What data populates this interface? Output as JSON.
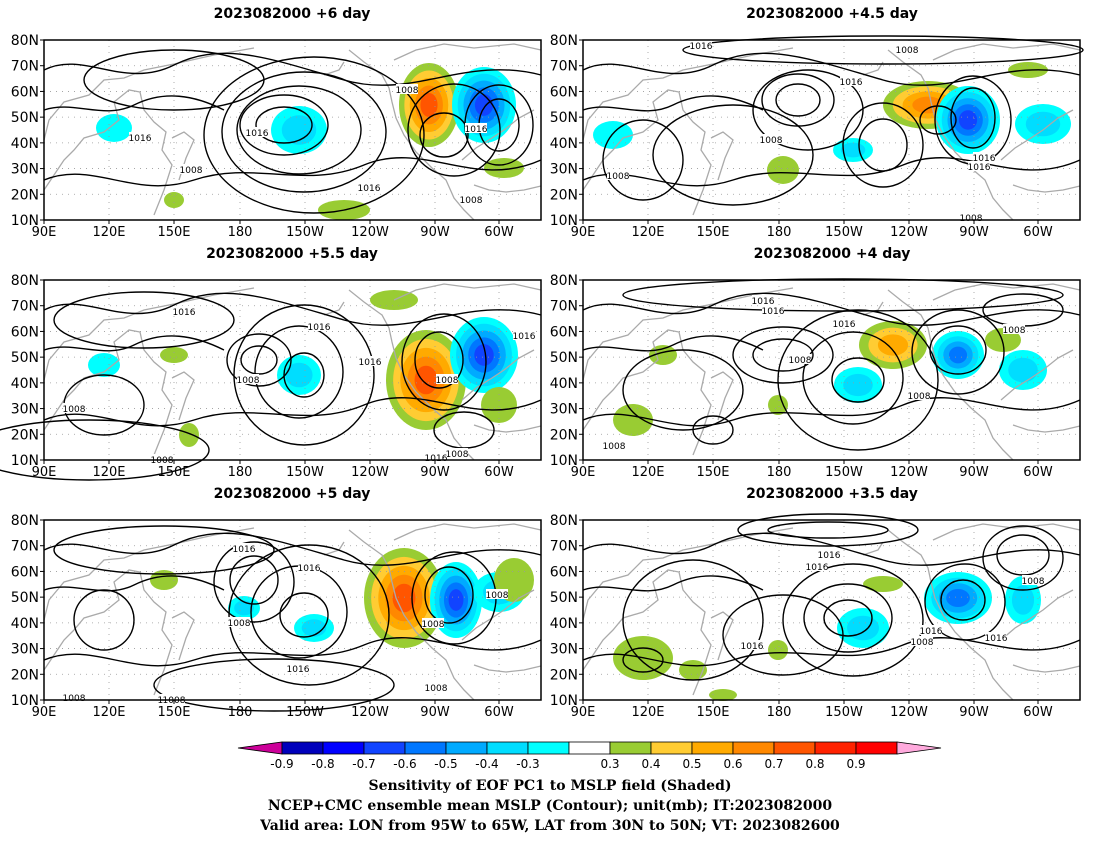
{
  "panels": [
    {
      "title": "2023082000  +6  day",
      "contour_labels": [
        "1016",
        "1008",
        "1016",
        "1008",
        "1016",
        "1008",
        "1016"
      ]
    },
    {
      "title": "2023082000  +4.5  day",
      "contour_labels": [
        "1016",
        "1008",
        "1016",
        "1008",
        "1008",
        "1016",
        "1016",
        "1008"
      ]
    },
    {
      "title": "2023082000  +5.5  day",
      "contour_labels": [
        "1016",
        "1016",
        "1008",
        "1016",
        "1008",
        "1008",
        "1016",
        "1008",
        "1008",
        "1016"
      ]
    },
    {
      "title": "2023082000  +4  day",
      "contour_labels": [
        "1016",
        "1016",
        "1016",
        "1008",
        "1008",
        "1008",
        "1008"
      ]
    },
    {
      "title": "2023082000  +5  day",
      "contour_labels": [
        "1016",
        "1016",
        "1008",
        "1008",
        "1016",
        "1008",
        "1008",
        "1016",
        "1008",
        "1008"
      ]
    },
    {
      "title": "2023082000  +3.5  day",
      "contour_labels": [
        "1016",
        "1016",
        "1008",
        "1016",
        "1008",
        "1016",
        "1016"
      ]
    }
  ],
  "map_axes": {
    "lat_labels": [
      "80N",
      "70N",
      "60N",
      "50N",
      "40N",
      "30N",
      "20N",
      "10N"
    ],
    "lon_labels": [
      "90E",
      "120E",
      "150E",
      "180",
      "150W",
      "120W",
      "90W",
      "60W"
    ]
  },
  "colorbar": {
    "ticks": [
      "-0.9",
      "-0.8",
      "-0.7",
      "-0.6",
      "-0.5",
      "-0.4",
      "-0.3",
      "0.3",
      "0.4",
      "0.5",
      "0.6",
      "0.7",
      "0.8",
      "0.9"
    ],
    "left_end_color": "#cc0099",
    "right_end_color": "#ffaadd",
    "colors": [
      "#0000bb",
      "#0000ff",
      "#1144ff",
      "#0077ff",
      "#00aaff",
      "#00ddff",
      "#00ffff",
      "#ffffff",
      "#99cc33",
      "#ffcc33",
      "#ffaa00",
      "#ff8800",
      "#ff5500",
      "#ff2200",
      "#ff0000"
    ]
  },
  "caption": {
    "line1": "Sensitivity of EOF PC1 to MSLP field (Shaded)",
    "line2": "NCEP+CMC ensemble mean MSLP (Contour); unit(mb); IT:2023082000",
    "line3": "Valid area: LON from 95W to 65W, LAT from 30N to 50N; VT: 2023082600"
  }
}
